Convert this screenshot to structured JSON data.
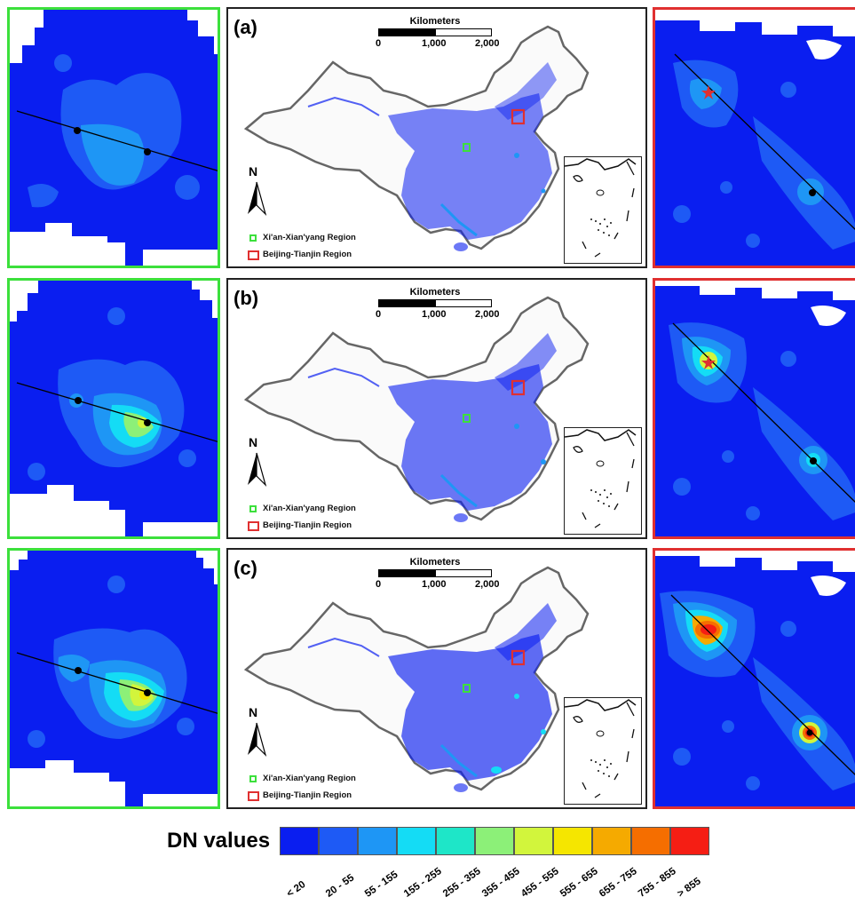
{
  "panels": [
    {
      "label": "(a)"
    },
    {
      "label": "(b)"
    },
    {
      "label": "(c)"
    }
  ],
  "scale_bar": {
    "title": "Kilometers",
    "ticks": [
      "0",
      "1,000",
      "2,000"
    ]
  },
  "north_arrow": {
    "letter": "N"
  },
  "map_legend": {
    "green_region": "Xi'an-Xian'yang Region",
    "red_region": "Beijing-Tianjin Region"
  },
  "color_legend": {
    "title": "DN values",
    "classes": [
      {
        "label": "< 20",
        "color": "#0a1ef0"
      },
      {
        "label": "20 - 55",
        "color": "#1e5af5"
      },
      {
        "label": "55 - 155",
        "color": "#1e96f5"
      },
      {
        "label": "155 - 255",
        "color": "#14dcf5"
      },
      {
        "label": "255 - 355",
        "color": "#1ee6c8"
      },
      {
        "label": "355 - 455",
        "color": "#8cf078"
      },
      {
        "label": "455 - 555",
        "color": "#d2f53c"
      },
      {
        "label": "555 - 655",
        "color": "#f5e600"
      },
      {
        "label": "655 - 755",
        "color": "#f5aa00"
      },
      {
        "label": "755 - 855",
        "color": "#f56e00"
      },
      {
        "label": "> 855",
        "color": "#f51e14"
      }
    ]
  },
  "colors": {
    "xian_frame": "#3ce03c",
    "beijing_frame": "#e03030",
    "land_background": "#0a1ef0",
    "no_data": "#ffffff",
    "city_marker": "#e03030"
  }
}
